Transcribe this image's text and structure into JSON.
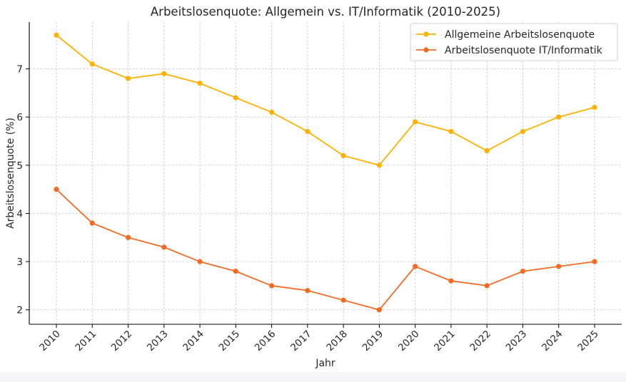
{
  "chart_data": {
    "type": "line",
    "title": "Arbeitslosenquote: Allgemein vs. IT/Informatik (2010-2025)",
    "xlabel": "Jahr",
    "ylabel": "Arbeitslosenquote (%)",
    "x": [
      "2010",
      "2011",
      "2012",
      "2013",
      "2014",
      "2015",
      "2016",
      "2017",
      "2018",
      "2019",
      "2020",
      "2021",
      "2022",
      "2023",
      "2024",
      "2025"
    ],
    "yticks": [
      "2",
      "3",
      "4",
      "5",
      "6",
      "7"
    ],
    "ylim": [
      1.7,
      7.97
    ],
    "grid": true,
    "legend_position": "top-right",
    "series": [
      {
        "name": "Allgemeine Arbeitslosenquote",
        "color": "#FFB000",
        "marker": "circle",
        "values": [
          7.7,
          7.1,
          6.8,
          6.9,
          6.7,
          6.4,
          6.1,
          5.7,
          5.2,
          5.0,
          5.9,
          5.7,
          5.3,
          5.7,
          6.0,
          6.2
        ]
      },
      {
        "name": "Arbeitslosenquote IT/Informatik",
        "color": "#F46A25",
        "marker": "circle",
        "values": [
          4.5,
          3.8,
          3.5,
          3.3,
          3.0,
          2.8,
          2.5,
          2.4,
          2.2,
          2.0,
          2.9,
          2.6,
          2.5,
          2.8,
          2.9,
          3.0
        ]
      }
    ]
  }
}
